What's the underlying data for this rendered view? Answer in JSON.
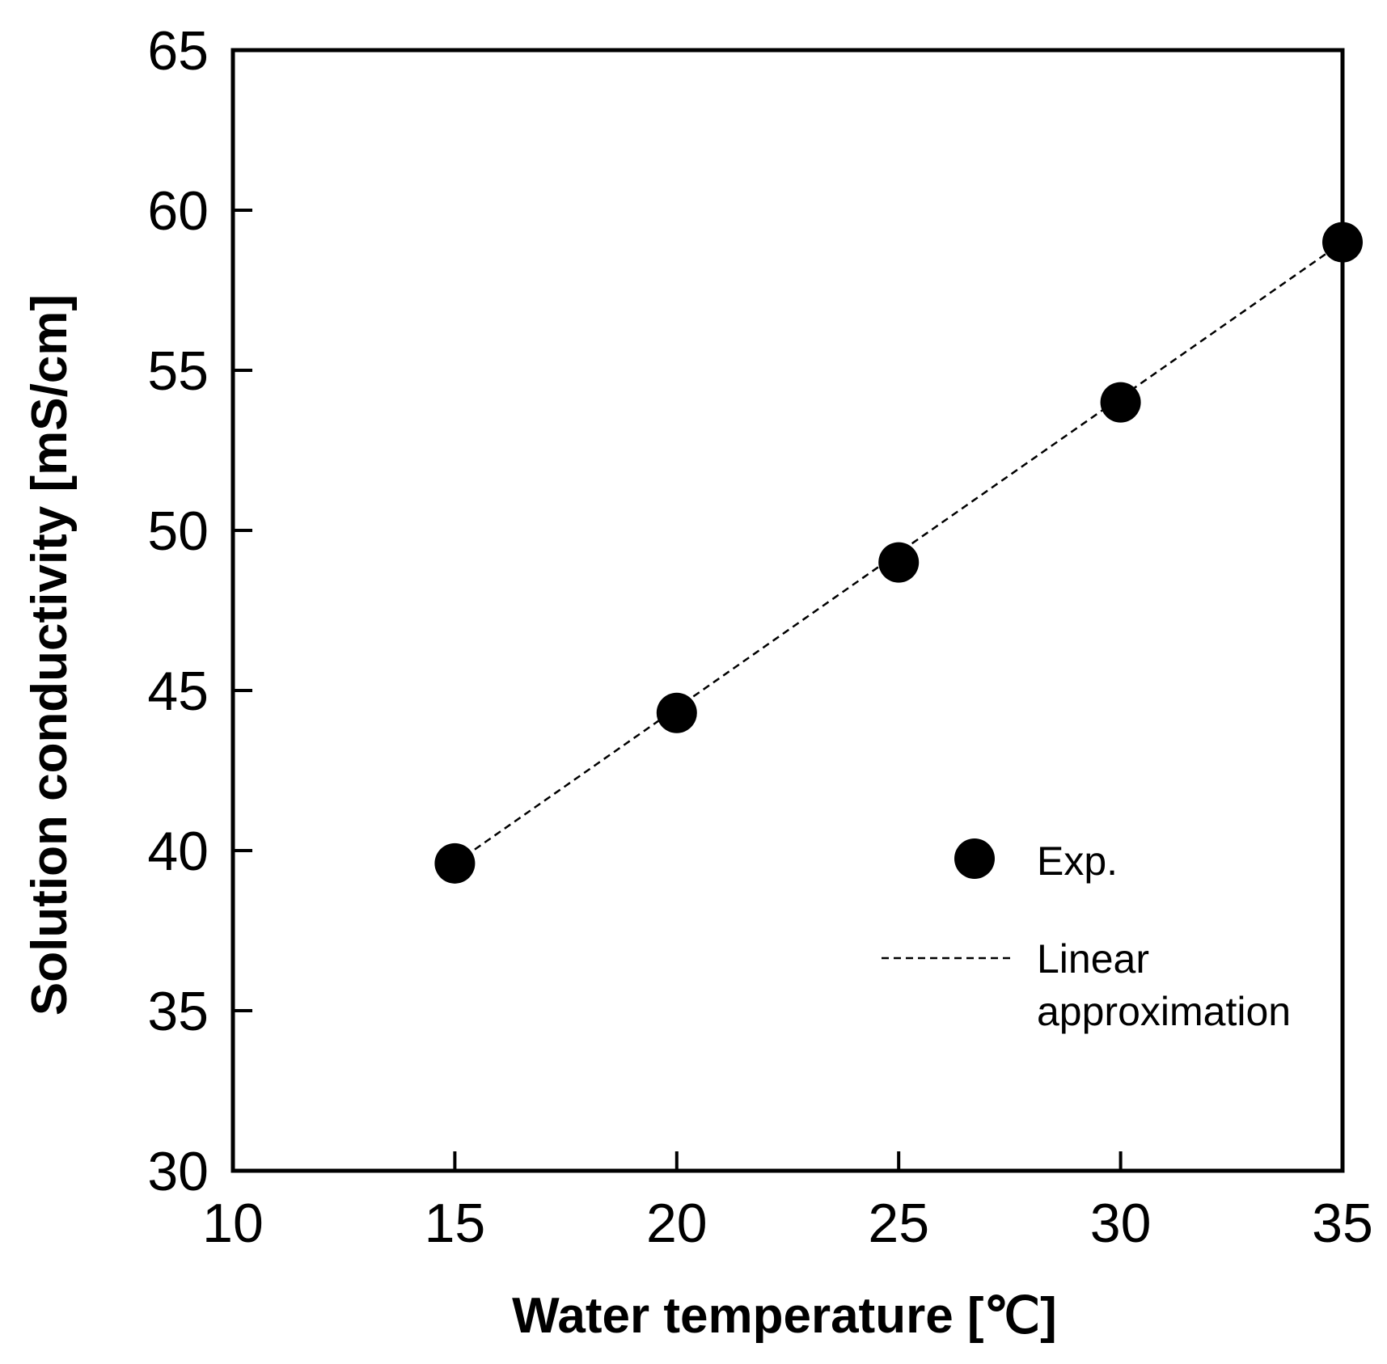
{
  "chart_data": {
    "type": "scatter",
    "title": "",
    "xlabel": "Water temperature [℃]",
    "ylabel": "Solution conductivity [mS/cm]",
    "xlim": [
      10,
      35
    ],
    "ylim": [
      30,
      65
    ],
    "xticks": [
      10,
      15,
      20,
      25,
      30,
      35
    ],
    "yticks": [
      30,
      35,
      40,
      45,
      50,
      55,
      60,
      65
    ],
    "grid": false,
    "legend_position": "lower-right",
    "series": [
      {
        "name": "Exp.",
        "kind": "markers",
        "color": "#000000",
        "x": [
          15,
          20,
          25,
          30,
          35
        ],
        "y": [
          39.6,
          44.3,
          49.0,
          54.0,
          59.0
        ]
      },
      {
        "name": "Linear approximation",
        "kind": "dashed-line",
        "color": "#000000",
        "x": [
          15,
          35
        ],
        "y": [
          39.6,
          59.0
        ]
      }
    ],
    "legend": {
      "exp_label": "Exp.",
      "linear_label_line1": "Linear",
      "linear_label_line2": "approximation"
    }
  }
}
